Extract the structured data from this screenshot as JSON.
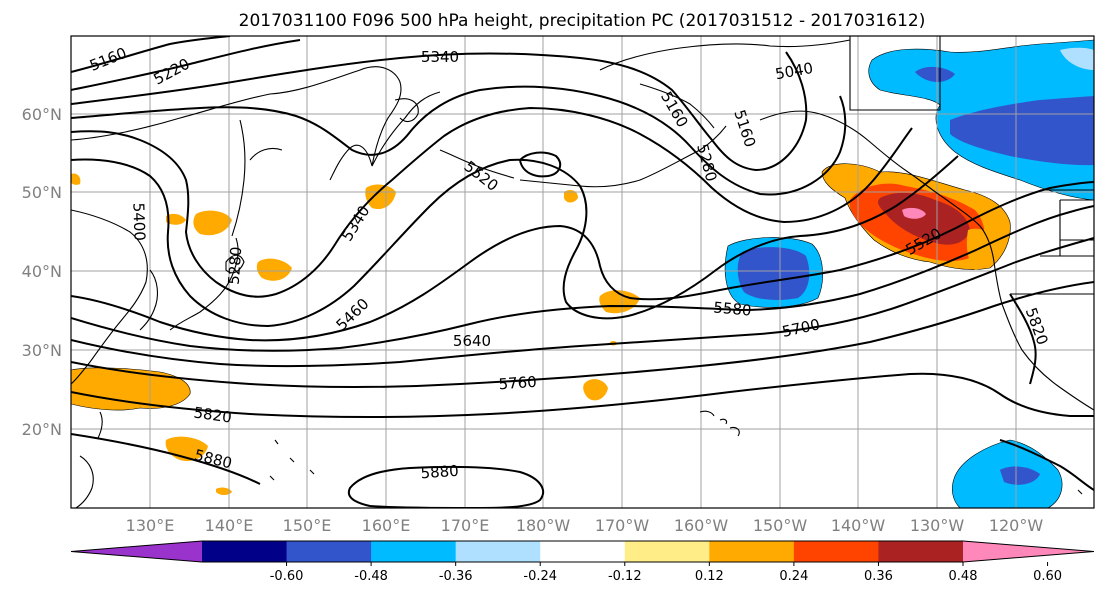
{
  "title": "2017031100 F096 500 hPa height, precipitation PC (2017031512 - 2017031612)",
  "lat_labels": [
    "60°N",
    "50°N",
    "40°N",
    "30°N",
    "20°N"
  ],
  "lon_labels": [
    "130°E",
    "140°E",
    "150°E",
    "160°E",
    "170°E",
    "180°W",
    "170°W",
    "160°W",
    "150°W",
    "140°W",
    "130°W",
    "120°W"
  ],
  "contour_labels": [
    "5160",
    "5220",
    "5340",
    "5040",
    "5160",
    "5280",
    "5160",
    "5400",
    "5520",
    "5340",
    "5280",
    "5580",
    "5520",
    "5460",
    "5640",
    "5700",
    "5760",
    "5820",
    "5880",
    "5880",
    "5820"
  ],
  "colorbar": {
    "tick_labels": [
      "-0.60",
      "-0.48",
      "-0.36",
      "-0.24",
      "-0.12",
      "0.12",
      "0.24",
      "0.36",
      "0.48",
      "0.60"
    ],
    "colors": [
      "#9933cc",
      "#000088",
      "#3355cc",
      "#00bbff",
      "#b0e0ff",
      "#ffffff",
      "#ffee88",
      "#ffaa00",
      "#ff4400",
      "#aa2222",
      "#ff88bb"
    ]
  },
  "colors": {
    "orange": "#ffaa00",
    "red": "#ff4400",
    "darkred": "#aa2222",
    "pink": "#ff88bb",
    "yellow": "#ffee88",
    "cyan": "#00bbff",
    "blue": "#3355cc",
    "lightblue": "#b0e0ff"
  }
}
